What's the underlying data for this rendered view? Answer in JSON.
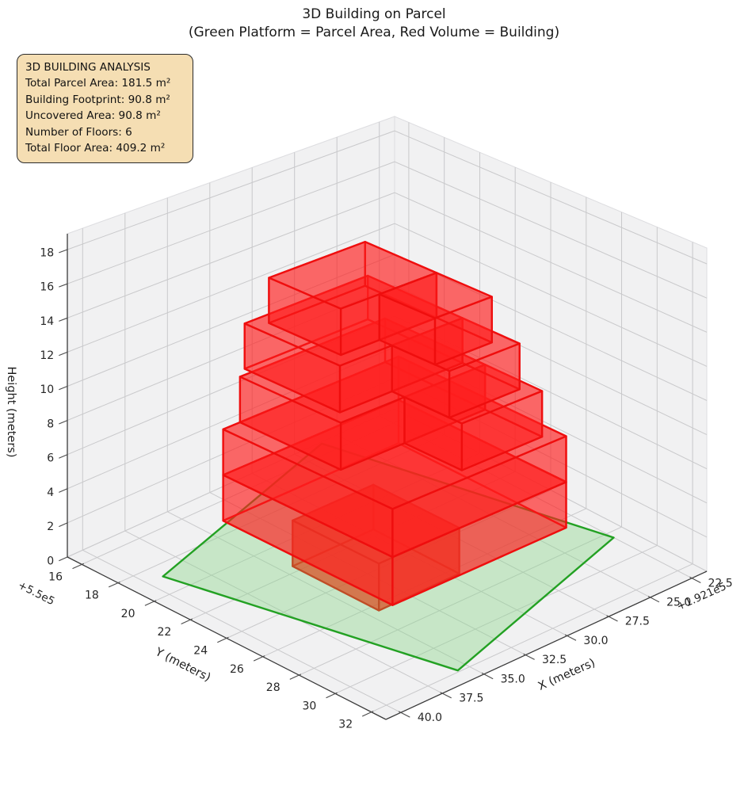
{
  "title": {
    "line1": "3D Building on Parcel",
    "line2": "(Green Platform = Parcel Area, Red Volume = Building)"
  },
  "info_box": {
    "title": "3D BUILDING ANALYSIS",
    "lines": [
      "Total Parcel Area: 181.5 m²",
      "Building Footprint: 90.8 m²",
      "Uncovered Area: 90.8 m²",
      "Number of Floors: 6",
      "Total Floor Area: 409.2 m²"
    ],
    "bg_color": "#f5deb3",
    "border_color": "#2b2b2b"
  },
  "chart_data": {
    "type": "3d-building-plot",
    "title": "3D Building on Parcel",
    "subtitle": "(Green Platform = Parcel Area, Red Volume = Building)",
    "legend_note": "Green Platform = Parcel Area, Red Volume = Building",
    "x_axis": {
      "label": "X (meters)",
      "offset_text": "+1.921e5",
      "tick_values": [
        40.0,
        37.5,
        35.0,
        32.5,
        30.0,
        27.5,
        25.0,
        22.5
      ],
      "tick_labels": [
        "40.0",
        "37.5",
        "35.0",
        "32.5",
        "30.0",
        "27.5",
        "25.0",
        "22.5"
      ],
      "lim": [
        21.6,
        40.9
      ]
    },
    "y_axis": {
      "label": "Y (meters)",
      "offset_text": "+5.5e5",
      "tick_values": [
        16,
        18,
        20,
        22,
        24,
        26,
        28,
        30,
        32
      ],
      "tick_labels": [
        "16",
        "18",
        "20",
        "22",
        "24",
        "26",
        "28",
        "30",
        "32"
      ],
      "lim": [
        15.2,
        32.8
      ]
    },
    "z_axis": {
      "label": "Height (meters)",
      "tick_values": [
        0,
        2,
        4,
        6,
        8,
        10,
        12,
        14,
        16,
        18
      ],
      "tick_labels": [
        "0",
        "2",
        "4",
        "6",
        "8",
        "10",
        "12",
        "14",
        "16",
        "18"
      ],
      "lim": [
        0,
        18.93
      ]
    },
    "parcel": {
      "area_m2": 181.5,
      "corners_xy": [
        [
          26.0,
          15.3
        ],
        [
          39.1,
          18.8
        ],
        [
          35.6,
          31.9
        ],
        [
          22.5,
          28.4
        ]
      ],
      "fill": "#8cd78c",
      "fill_opacity": 0.42,
      "edge": "#23a123",
      "edge_width": 2.4
    },
    "building": {
      "num_floors": 6,
      "floor_height_m": 2.667,
      "footprint_m2": 90.8,
      "total_floor_area_m2": 409.2,
      "fill": "#ff1e1e",
      "fill_opacity": 0.42,
      "edge": "#ee0e0e",
      "edge_width": 2.3,
      "ground_floor_style": {
        "fill": "#d85428",
        "fill_opacity": 0.5,
        "edge": "#bf4d26",
        "edge_width": 2.2
      },
      "boxes": [
        {
          "floor": 1,
          "ground": true,
          "x": [
            29.6,
            34.4
          ],
          "y": [
            21.6,
            26.4
          ],
          "z": [
            0,
            2.667
          ]
        },
        {
          "floor": 2,
          "ground": false,
          "x": [
            26.2,
            36.6
          ],
          "y": [
            19.8,
            29.2
          ],
          "z": [
            2.667,
            5.333
          ]
        },
        {
          "floor": 3,
          "ground": false,
          "x": [
            26.2,
            36.6
          ],
          "y": [
            19.8,
            29.2
          ],
          "z": [
            5.333,
            8.0
          ]
        },
        {
          "floor": 4,
          "ground": false,
          "x": [
            27.0,
            35.6
          ],
          "y": [
            19.8,
            25.4
          ],
          "z": [
            8.0,
            10.667
          ]
        },
        {
          "floor": 4,
          "ground": false,
          "x": [
            27.0,
            31.8
          ],
          "y": [
            25.4,
            28.6
          ],
          "z": [
            8.0,
            10.667
          ]
        },
        {
          "floor": 5,
          "ground": false,
          "x": [
            27.6,
            34.9
          ],
          "y": [
            19.4,
            24.7
          ],
          "z": [
            10.667,
            13.333
          ]
        },
        {
          "floor": 5,
          "ground": false,
          "x": [
            27.6,
            31.8
          ],
          "y": [
            24.7,
            27.9
          ],
          "z": [
            10.667,
            13.333
          ]
        },
        {
          "floor": 6,
          "ground": false,
          "x": [
            28.4,
            34.1
          ],
          "y": [
            20.0,
            24.0
          ],
          "z": [
            13.333,
            16.0
          ]
        },
        {
          "floor": 6,
          "ground": false,
          "x": [
            28.4,
            31.8
          ],
          "y": [
            24.0,
            27.1
          ],
          "z": [
            13.333,
            16.0
          ]
        }
      ]
    },
    "style": {
      "pane_color": "#f1f1f2",
      "grid_color": "#c9c9cb",
      "axis_line_color": "#3a3a3a",
      "tick_label_color": "#262626",
      "background": "#ffffff"
    }
  }
}
